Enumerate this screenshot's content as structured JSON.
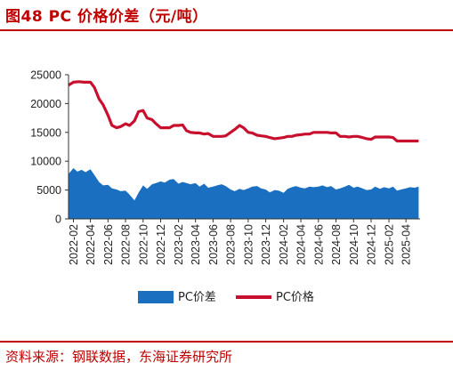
{
  "figure": {
    "title": "图48  PC 价格价差（元/吨）",
    "source": "资料来源：钢联数据，东海证券研究所"
  },
  "colors": {
    "accent": "#c00000",
    "area": "#1a6fc0",
    "line": "#c8102e"
  },
  "chart_data": {
    "type": "line",
    "x_ticks": [
      "2022-02",
      "2022-04",
      "2022-06",
      "2022-08",
      "2022-10",
      "2022-12",
      "2023-02",
      "2023-04",
      "2023-06",
      "2023-08",
      "2023-10",
      "2023-12",
      "2024-02",
      "2024-04",
      "2024-06",
      "2024-08",
      "2024-10",
      "2024-12",
      "2025-02",
      "2025-04"
    ],
    "ylim": [
      0,
      25000
    ],
    "y_ticks": [
      "0",
      "5000",
      "10000",
      "15000",
      "20000",
      "25000"
    ],
    "legend": [
      "PC价差",
      "PC价格"
    ],
    "legend_position": "bottom",
    "grid": false,
    "series": [
      {
        "name": "PC价格",
        "type": "line",
        "x": [
          "2022-01-15",
          "2022-02-01",
          "2022-02-20",
          "2022-03-10",
          "2022-04-01",
          "2022-04-15",
          "2022-05-01",
          "2022-05-15",
          "2022-06-01",
          "2022-06-15",
          "2022-07-01",
          "2022-07-15",
          "2022-08-01",
          "2022-08-15",
          "2022-09-01",
          "2022-09-15",
          "2022-10-01",
          "2022-10-15",
          "2022-11-01",
          "2022-11-15",
          "2022-12-01",
          "2022-12-15",
          "2023-01-01",
          "2023-01-15",
          "2023-02-01",
          "2023-02-15",
          "2023-03-01",
          "2023-03-15",
          "2023-04-01",
          "2023-04-15",
          "2023-05-01",
          "2023-05-15",
          "2023-06-01",
          "2023-06-15",
          "2023-07-01",
          "2023-07-15",
          "2023-08-01",
          "2023-08-15",
          "2023-09-01",
          "2023-09-15",
          "2023-10-01",
          "2023-10-15",
          "2023-11-01",
          "2023-11-15",
          "2023-12-01",
          "2023-12-15",
          "2024-01-01",
          "2024-01-15",
          "2024-02-01",
          "2024-02-15",
          "2024-03-01",
          "2024-03-15",
          "2024-04-01",
          "2024-04-15",
          "2024-05-01",
          "2024-05-15",
          "2024-06-01",
          "2024-06-15",
          "2024-07-01",
          "2024-07-15",
          "2024-08-01",
          "2024-08-15",
          "2024-09-01",
          "2024-09-15",
          "2024-10-01",
          "2024-10-15",
          "2024-11-01",
          "2024-11-15",
          "2024-12-01",
          "2024-12-15",
          "2025-01-01",
          "2025-01-15",
          "2025-02-01",
          "2025-02-15",
          "2025-03-01",
          "2025-03-15",
          "2025-04-01",
          "2025-04-15",
          "2025-05-01",
          "2025-05-15"
        ],
        "y": [
          23200,
          23700,
          23800,
          23700,
          23700,
          22800,
          20800,
          19800,
          18000,
          16200,
          15800,
          16000,
          16500,
          16200,
          17000,
          18600,
          18800,
          17500,
          17200,
          16500,
          15800,
          15800,
          15800,
          16200,
          16200,
          16300,
          15300,
          15000,
          14900,
          14900,
          14700,
          14800,
          14300,
          14300,
          14300,
          14400,
          15000,
          15500,
          16200,
          15800,
          15000,
          14900,
          14500,
          14400,
          14300,
          14100,
          13900,
          14000,
          14100,
          14300,
          14300,
          14500,
          14600,
          14700,
          14700,
          15000,
          15000,
          15000,
          15000,
          14900,
          14900,
          14300,
          14300,
          14200,
          14300,
          14300,
          14100,
          13900,
          13800,
          14200,
          14200,
          14200,
          14200,
          14100,
          13500,
          13500,
          13500,
          13500,
          13500,
          13500
        ]
      },
      {
        "name": "PC价差",
        "type": "area",
        "x": [
          "2022-01-15",
          "2022-02-01",
          "2022-02-15",
          "2022-03-01",
          "2022-03-15",
          "2022-04-01",
          "2022-04-15",
          "2022-05-01",
          "2022-05-15",
          "2022-06-01",
          "2022-06-15",
          "2022-07-01",
          "2022-07-15",
          "2022-08-01",
          "2022-08-15",
          "2022-09-01",
          "2022-09-15",
          "2022-10-01",
          "2022-10-15",
          "2022-11-01",
          "2022-11-15",
          "2022-12-01",
          "2022-12-15",
          "2023-01-01",
          "2023-01-15",
          "2023-02-01",
          "2023-02-15",
          "2023-03-01",
          "2023-03-15",
          "2023-04-01",
          "2023-04-15",
          "2023-05-01",
          "2023-05-15",
          "2023-06-01",
          "2023-06-15",
          "2023-07-01",
          "2023-07-15",
          "2023-08-01",
          "2023-08-15",
          "2023-09-01",
          "2023-09-15",
          "2023-10-01",
          "2023-10-15",
          "2023-11-01",
          "2023-11-15",
          "2023-12-01",
          "2023-12-15",
          "2024-01-01",
          "2024-01-15",
          "2024-02-01",
          "2024-02-15",
          "2024-03-01",
          "2024-03-15",
          "2024-04-01",
          "2024-04-15",
          "2024-05-01",
          "2024-05-15",
          "2024-06-01",
          "2024-06-15",
          "2024-07-01",
          "2024-07-15",
          "2024-08-01",
          "2024-08-15",
          "2024-09-01",
          "2024-09-15",
          "2024-10-01",
          "2024-10-15",
          "2024-11-01",
          "2024-11-15",
          "2024-12-01",
          "2024-12-15",
          "2025-01-01",
          "2025-01-15",
          "2025-02-01",
          "2025-02-15",
          "2025-03-01",
          "2025-03-15",
          "2025-04-01",
          "2025-04-15",
          "2025-05-01",
          "2025-05-15"
        ],
        "y": [
          7800,
          8800,
          8200,
          8500,
          8100,
          8600,
          7600,
          6400,
          5800,
          5900,
          5300,
          5100,
          4800,
          4900,
          4200,
          3200,
          4500,
          5800,
          5200,
          6000,
          6200,
          6500,
          6300,
          6800,
          6900,
          6100,
          6400,
          6200,
          6000,
          6200,
          5600,
          6100,
          5400,
          5600,
          5800,
          6000,
          5700,
          5100,
          4800,
          5200,
          5000,
          5300,
          5600,
          5700,
          5300,
          5100,
          4600,
          5000,
          4900,
          4500,
          5200,
          5500,
          5700,
          5400,
          5300,
          5600,
          5500,
          5600,
          5800,
          5500,
          5700,
          5100,
          5300,
          5600,
          5900,
          5400,
          5600,
          5300,
          5000,
          5100,
          5600,
          5200,
          5500,
          5300,
          5600,
          4900,
          5100,
          5300,
          5500,
          5400,
          5600
        ]
      }
    ]
  }
}
